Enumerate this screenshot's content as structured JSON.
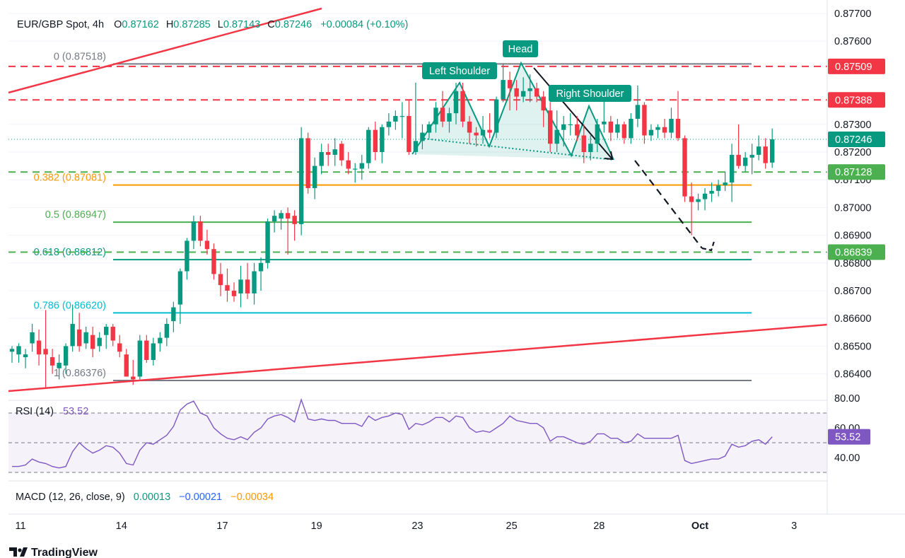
{
  "header": {
    "symbol": "EUR/GBP Spot, 4h",
    "o_label": "O",
    "o_value": "0.87162",
    "h_label": "H",
    "h_value": "0.87285",
    "l_label": "L",
    "l_value": "0.87143",
    "c_label": "C",
    "c_value": "0.87246",
    "change": "+0.00084 (+0.10%)"
  },
  "price_axis": {
    "ticks": [
      {
        "value": 0.877,
        "label": "0.87700"
      },
      {
        "value": 0.876,
        "label": "0.87600"
      },
      {
        "value": 0.873,
        "label": "0.87300"
      },
      {
        "value": 0.872,
        "label": "0.87200"
      },
      {
        "value": 0.871,
        "label": "0.87100"
      },
      {
        "value": 0.87,
        "label": "0.87000"
      },
      {
        "value": 0.869,
        "label": "0.86900"
      },
      {
        "value": 0.868,
        "label": "0.86800"
      },
      {
        "value": 0.867,
        "label": "0.86700"
      },
      {
        "value": 0.866,
        "label": "0.86600"
      },
      {
        "value": 0.865,
        "label": "0.86500"
      },
      {
        "value": 0.864,
        "label": "0.86400"
      }
    ]
  },
  "price_badges": [
    {
      "value": 0.87509,
      "label": "0.87509",
      "color": "#f23645"
    },
    {
      "value": 0.87388,
      "label": "0.87388",
      "color": "#f23645"
    },
    {
      "value": 0.87246,
      "label": "0.87246",
      "color": "#089981"
    },
    {
      "value": 0.87128,
      "label": "0.87128",
      "color": "#4caf50"
    },
    {
      "value": 0.86839,
      "label": "0.86839",
      "color": "#4caf50"
    }
  ],
  "fib_levels": [
    {
      "value": 0.87518,
      "label": "0 (0.87518)",
      "color": "#787b86"
    },
    {
      "value": 0.87081,
      "label": "0.382 (0.87081)",
      "color": "#ff9800"
    },
    {
      "value": 0.86947,
      "label": "0.5 (0.86947)",
      "color": "#4caf50"
    },
    {
      "value": 0.86812,
      "label": "0.618 (0.86812)",
      "color": "#089981"
    },
    {
      "value": 0.8662,
      "label": "0.786 (0.86620)",
      "color": "#00bcd4"
    },
    {
      "value": 0.86376,
      "label": "1 (0.86376)",
      "color": "#787b86"
    }
  ],
  "pattern_labels": {
    "left_shoulder": "Left Shoulder",
    "head": "Head",
    "right_shoulder": "Right Shoulder"
  },
  "rsi": {
    "title": "RSI (14)",
    "value": "53.52",
    "color": "#7e57c2",
    "ticks": [
      {
        "value": 80,
        "label": "80.00"
      },
      {
        "value": 60,
        "label": "60.00"
      },
      {
        "value": 40,
        "label": "40.00"
      }
    ]
  },
  "macd": {
    "title": "MACD (12, 26, close, 9)",
    "v1": "0.00013",
    "v2": "−0.00021",
    "v3": "−0.00034",
    "c1": "#089981",
    "c2": "#2962ff",
    "c3": "#ff9800"
  },
  "time_axis": {
    "labels": [
      "11",
      "14",
      "17",
      "19",
      "23",
      "25",
      "28",
      "Oct",
      "3"
    ]
  },
  "branding": {
    "logo": "TradingView"
  },
  "colors": {
    "up": "#089981",
    "down": "#f23645"
  },
  "chart_data": {
    "type": "candlestick",
    "timeframe": "4h",
    "ohlc": [
      [
        0.8648,
        0.865,
        0.8644,
        0.8649
      ],
      [
        0.8647,
        0.8651,
        0.8644,
        0.865
      ],
      [
        0.8646,
        0.8649,
        0.8642,
        0.8647
      ],
      [
        0.8651,
        0.8658,
        0.8648,
        0.8655
      ],
      [
        0.8652,
        0.8656,
        0.8643,
        0.8647
      ],
      [
        0.8649,
        0.8663,
        0.8635,
        0.8647
      ],
      [
        0.8646,
        0.8649,
        0.864,
        0.8643
      ],
      [
        0.8642,
        0.8647,
        0.8638,
        0.8644
      ],
      [
        0.8643,
        0.8651,
        0.864,
        0.865
      ],
      [
        0.865,
        0.8665,
        0.8648,
        0.8658
      ],
      [
        0.8656,
        0.8662,
        0.8648,
        0.865
      ],
      [
        0.8651,
        0.8657,
        0.8649,
        0.8655
      ],
      [
        0.8654,
        0.8657,
        0.8646,
        0.8649
      ],
      [
        0.865,
        0.8655,
        0.8648,
        0.8653
      ],
      [
        0.8654,
        0.8658,
        0.8649,
        0.8657
      ],
      [
        0.8657,
        0.8658,
        0.865,
        0.8652
      ],
      [
        0.8651,
        0.8654,
        0.8646,
        0.8648
      ],
      [
        0.8647,
        0.8649,
        0.8639,
        0.8639
      ],
      [
        0.8639,
        0.8645,
        0.8636,
        0.8638
      ],
      [
        0.8639,
        0.8654,
        0.8638,
        0.8652
      ],
      [
        0.8652,
        0.8654,
        0.8644,
        0.8645
      ],
      [
        0.8645,
        0.8653,
        0.8643,
        0.8651
      ],
      [
        0.8651,
        0.8655,
        0.8648,
        0.8653
      ],
      [
        0.8653,
        0.866,
        0.865,
        0.8658
      ],
      [
        0.8659,
        0.8666,
        0.8655,
        0.8664
      ],
      [
        0.8665,
        0.8678,
        0.8658,
        0.8677
      ],
      [
        0.8677,
        0.8689,
        0.8674,
        0.8688
      ],
      [
        0.8688,
        0.8697,
        0.8685,
        0.8695
      ],
      [
        0.8695,
        0.8697,
        0.8686,
        0.8688
      ],
      [
        0.8688,
        0.8692,
        0.8683,
        0.8685
      ],
      [
        0.8685,
        0.8687,
        0.8674,
        0.8676
      ],
      [
        0.8676,
        0.868,
        0.8668,
        0.8672
      ],
      [
        0.8672,
        0.8678,
        0.8666,
        0.867
      ],
      [
        0.867,
        0.8673,
        0.8666,
        0.8668
      ],
      [
        0.8669,
        0.8679,
        0.8664,
        0.8674
      ],
      [
        0.8674,
        0.868,
        0.8667,
        0.8669
      ],
      [
        0.8669,
        0.868,
        0.8665,
        0.8677
      ],
      [
        0.8677,
        0.8682,
        0.867,
        0.868
      ],
      [
        0.868,
        0.8696,
        0.8678,
        0.8695
      ],
      [
        0.8695,
        0.8699,
        0.8691,
        0.8697
      ],
      [
        0.8696,
        0.8699,
        0.8692,
        0.8698
      ],
      [
        0.8698,
        0.87,
        0.8683,
        0.8696
      ],
      [
        0.8697,
        0.8699,
        0.8688,
        0.8694
      ],
      [
        0.8694,
        0.8729,
        0.869,
        0.8725
      ],
      [
        0.8725,
        0.8727,
        0.8705,
        0.8707
      ],
      [
        0.8707,
        0.8718,
        0.8703,
        0.8715
      ],
      [
        0.8715,
        0.8723,
        0.8712,
        0.872
      ],
      [
        0.872,
        0.8723,
        0.8715,
        0.8719
      ],
      [
        0.8719,
        0.8725,
        0.8715,
        0.8721
      ],
      [
        0.8723,
        0.8724,
        0.8715,
        0.8717
      ],
      [
        0.8717,
        0.872,
        0.8712,
        0.8714
      ],
      [
        0.8714,
        0.8716,
        0.8709,
        0.8714
      ],
      [
        0.8714,
        0.8719,
        0.871,
        0.8716
      ],
      [
        0.8716,
        0.8729,
        0.8714,
        0.8728
      ],
      [
        0.8728,
        0.8731,
        0.8717,
        0.872
      ],
      [
        0.872,
        0.873,
        0.8716,
        0.8729
      ],
      [
        0.8729,
        0.8734,
        0.8726,
        0.8731
      ],
      [
        0.8731,
        0.8735,
        0.8728,
        0.8733
      ],
      [
        0.8733,
        0.8738,
        0.8725,
        0.8733
      ],
      [
        0.8733,
        0.8739,
        0.8719,
        0.872
      ],
      [
        0.872,
        0.8745,
        0.8719,
        0.8724
      ],
      [
        0.8724,
        0.873,
        0.8721,
        0.8727
      ],
      [
        0.8727,
        0.8731,
        0.8725,
        0.873
      ],
      [
        0.873,
        0.8738,
        0.8727,
        0.8736
      ],
      [
        0.8736,
        0.8742,
        0.8729,
        0.8731
      ],
      [
        0.8731,
        0.8736,
        0.8727,
        0.8734
      ],
      [
        0.8734,
        0.8745,
        0.873,
        0.8742
      ],
      [
        0.8742,
        0.8745,
        0.8729,
        0.8731
      ],
      [
        0.8731,
        0.8733,
        0.8723,
        0.8727
      ],
      [
        0.8727,
        0.8729,
        0.8722,
        0.8726
      ],
      [
        0.8726,
        0.8733,
        0.8723,
        0.8728
      ],
      [
        0.8728,
        0.8734,
        0.8725,
        0.8727
      ],
      [
        0.8727,
        0.874,
        0.8725,
        0.8739
      ],
      [
        0.8739,
        0.8752,
        0.8738,
        0.8746
      ],
      [
        0.8746,
        0.8749,
        0.8735,
        0.8743
      ],
      [
        0.8743,
        0.8746,
        0.8735,
        0.874
      ],
      [
        0.874,
        0.8747,
        0.8738,
        0.8742
      ],
      [
        0.8742,
        0.8748,
        0.8738,
        0.8743
      ],
      [
        0.8743,
        0.8745,
        0.8738,
        0.874
      ],
      [
        0.874,
        0.8742,
        0.8729,
        0.8735
      ],
      [
        0.8735,
        0.8738,
        0.872,
        0.8723
      ],
      [
        0.8723,
        0.8735,
        0.872,
        0.8728
      ],
      [
        0.8728,
        0.8733,
        0.8722,
        0.873
      ],
      [
        0.873,
        0.8734,
        0.8726,
        0.873
      ],
      [
        0.873,
        0.8733,
        0.8724,
        0.8726
      ],
      [
        0.8726,
        0.873,
        0.8716,
        0.872
      ],
      [
        0.872,
        0.8726,
        0.8717,
        0.8723
      ],
      [
        0.8723,
        0.8732,
        0.872,
        0.873
      ],
      [
        0.873,
        0.8739,
        0.8727,
        0.8731
      ],
      [
        0.8731,
        0.8733,
        0.8724,
        0.8727
      ],
      [
        0.8727,
        0.8732,
        0.8725,
        0.873
      ],
      [
        0.873,
        0.8731,
        0.8723,
        0.8725
      ],
      [
        0.8725,
        0.8734,
        0.8723,
        0.8732
      ],
      [
        0.8732,
        0.8744,
        0.8729,
        0.8737
      ],
      [
        0.8737,
        0.8738,
        0.8723,
        0.8726
      ],
      [
        0.8726,
        0.873,
        0.8724,
        0.8728
      ],
      [
        0.8728,
        0.873,
        0.8725,
        0.8729
      ],
      [
        0.8729,
        0.8732,
        0.8725,
        0.8727
      ],
      [
        0.8727,
        0.8736,
        0.8725,
        0.8732
      ],
      [
        0.8732,
        0.8742,
        0.8724,
        0.8725
      ],
      [
        0.8725,
        0.8726,
        0.8702,
        0.8704
      ],
      [
        0.8704,
        0.8709,
        0.869,
        0.8702
      ],
      [
        0.8702,
        0.8705,
        0.8699,
        0.8703
      ],
      [
        0.8703,
        0.8707,
        0.8699,
        0.8705
      ],
      [
        0.8705,
        0.8709,
        0.8702,
        0.8706
      ],
      [
        0.8706,
        0.871,
        0.8704,
        0.8708
      ],
      [
        0.8708,
        0.8713,
        0.8706,
        0.8709
      ],
      [
        0.8709,
        0.8723,
        0.8702,
        0.8719
      ],
      [
        0.8719,
        0.873,
        0.8714,
        0.8715
      ],
      [
        0.8715,
        0.872,
        0.8713,
        0.8718
      ],
      [
        0.8718,
        0.8723,
        0.8712,
        0.8719
      ],
      [
        0.8719,
        0.8726,
        0.8717,
        0.8722
      ],
      [
        0.8722,
        0.8725,
        0.8714,
        0.8716
      ],
      [
        0.87162,
        0.87285,
        0.87143,
        0.87246
      ]
    ],
    "rsi_values": [
      34,
      34,
      35,
      39,
      37,
      36,
      34,
      33,
      34,
      44,
      50,
      46,
      43,
      45,
      48,
      47,
      43,
      36,
      35,
      45,
      50,
      49,
      52,
      55,
      61,
      72,
      76,
      78,
      70,
      68,
      60,
      56,
      53,
      52,
      54,
      52,
      57,
      60,
      66,
      68,
      69,
      67,
      64,
      79,
      66,
      65,
      66,
      65,
      65,
      63,
      63,
      63,
      61,
      68,
      65,
      67,
      68,
      70,
      69,
      59,
      63,
      62,
      64,
      67,
      67,
      64,
      68,
      67,
      60,
      57,
      58,
      57,
      60,
      63,
      68,
      65,
      64,
      63,
      63,
      60,
      51,
      54,
      54,
      52,
      50,
      49,
      51,
      56,
      56,
      53,
      53,
      50,
      51,
      56,
      53,
      53,
      53,
      53,
      53,
      55,
      38,
      36,
      37,
      38,
      39,
      39,
      41,
      49,
      47,
      48,
      51,
      52,
      49,
      54
    ]
  }
}
